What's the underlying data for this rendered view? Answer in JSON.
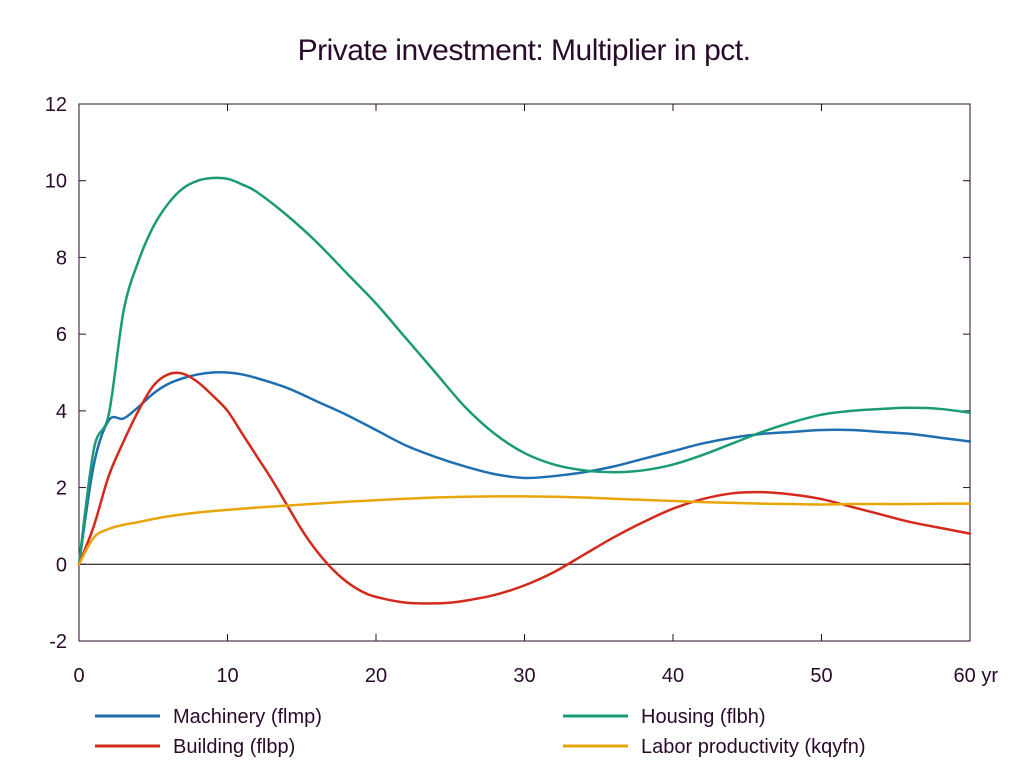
{
  "chart_data": {
    "type": "line",
    "title": "Private investment: Multiplier in pct.",
    "xlabel": "",
    "ylabel": "",
    "x_unit_label": "yr",
    "xlim": [
      0,
      60
    ],
    "ylim": [
      -2,
      12
    ],
    "x_ticks": [
      0,
      10,
      20,
      30,
      40,
      50,
      60
    ],
    "x_tick_labels": [
      "0",
      "10",
      "20",
      "30",
      "40",
      "50",
      "60 yr"
    ],
    "y_ticks": [
      -2,
      0,
      2,
      4,
      6,
      8,
      10,
      12
    ],
    "y_tick_labels": [
      "-2",
      "0",
      "2",
      "4",
      "6",
      "8",
      "10",
      "12"
    ],
    "grid": false,
    "zero_line": true,
    "legend_position": "bottom",
    "series": [
      {
        "name": "Machinery (flmp)",
        "color": "#1f6fb0",
        "x": [
          0,
          1,
          2,
          3,
          4,
          5,
          6,
          7,
          8,
          9,
          10,
          11,
          12,
          14,
          16,
          18,
          20,
          22,
          24,
          26,
          28,
          30,
          32,
          34,
          36,
          38,
          40,
          42,
          44,
          46,
          48,
          50,
          52,
          54,
          56,
          58,
          60
        ],
        "y": [
          0,
          2.6,
          3.75,
          3.8,
          4.1,
          4.45,
          4.7,
          4.85,
          4.95,
          5.0,
          5.0,
          4.95,
          4.85,
          4.6,
          4.25,
          3.9,
          3.5,
          3.1,
          2.8,
          2.55,
          2.35,
          2.25,
          2.3,
          2.4,
          2.55,
          2.75,
          2.95,
          3.15,
          3.3,
          3.4,
          3.45,
          3.5,
          3.5,
          3.45,
          3.4,
          3.3,
          3.2
        ]
      },
      {
        "name": "Housing (flbh)",
        "color": "#1a9b75",
        "x": [
          0,
          1,
          2,
          3,
          4,
          5,
          6,
          7,
          8,
          9,
          10,
          11,
          12,
          14,
          16,
          18,
          20,
          22,
          24,
          26,
          28,
          30,
          32,
          34,
          36,
          38,
          40,
          42,
          44,
          46,
          48,
          50,
          52,
          54,
          56,
          58,
          60
        ],
        "y": [
          0,
          3.0,
          3.9,
          6.6,
          7.9,
          8.8,
          9.4,
          9.8,
          10.0,
          10.07,
          10.05,
          9.9,
          9.7,
          9.1,
          8.4,
          7.6,
          6.8,
          5.9,
          5.0,
          4.1,
          3.4,
          2.9,
          2.6,
          2.45,
          2.4,
          2.45,
          2.6,
          2.85,
          3.15,
          3.45,
          3.7,
          3.9,
          4.0,
          4.05,
          4.08,
          4.05,
          3.95
        ]
      },
      {
        "name": "Building (flbp)",
        "color": "#d42a1e",
        "x": [
          0,
          1,
          2,
          3,
          4,
          5,
          6,
          7,
          8,
          9,
          10,
          11,
          12,
          13,
          14,
          15,
          16,
          17,
          18,
          19,
          20,
          22,
          24,
          25,
          26,
          28,
          30,
          32,
          34,
          36,
          38,
          40,
          42,
          44,
          46,
          48,
          50,
          52,
          54,
          56,
          58,
          60
        ],
        "y": [
          0,
          1.0,
          2.3,
          3.2,
          4.0,
          4.65,
          4.95,
          4.97,
          4.75,
          4.4,
          4.0,
          3.4,
          2.8,
          2.2,
          1.55,
          0.9,
          0.35,
          -0.1,
          -0.45,
          -0.7,
          -0.85,
          -1.0,
          -1.02,
          -1.0,
          -0.95,
          -0.8,
          -0.55,
          -0.2,
          0.25,
          0.7,
          1.1,
          1.45,
          1.7,
          1.85,
          1.88,
          1.82,
          1.7,
          1.5,
          1.3,
          1.1,
          0.95,
          0.8
        ]
      },
      {
        "name": "Labor productivity (kqyfn)",
        "color": "#e8a50a",
        "x": [
          0,
          1,
          2,
          3,
          4,
          5,
          6,
          8,
          10,
          12,
          14,
          16,
          18,
          20,
          22,
          24,
          26,
          28,
          30,
          32,
          34,
          36,
          38,
          40,
          42,
          44,
          46,
          48,
          50,
          52,
          54,
          56,
          58,
          60
        ],
        "y": [
          0,
          0.7,
          0.92,
          1.03,
          1.1,
          1.18,
          1.25,
          1.35,
          1.42,
          1.48,
          1.53,
          1.58,
          1.63,
          1.67,
          1.71,
          1.74,
          1.76,
          1.77,
          1.77,
          1.76,
          1.74,
          1.71,
          1.68,
          1.65,
          1.62,
          1.6,
          1.58,
          1.57,
          1.56,
          1.57,
          1.57,
          1.57,
          1.58,
          1.58
        ]
      }
    ]
  }
}
